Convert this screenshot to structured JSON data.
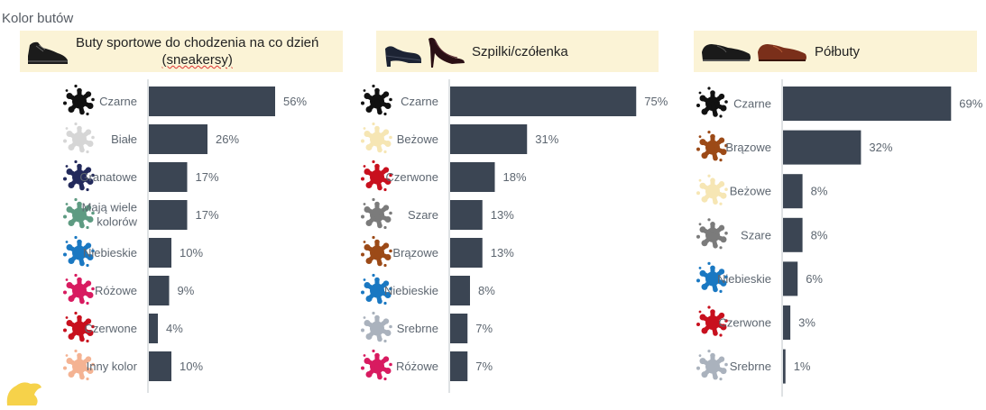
{
  "page_title": "Kolor butów",
  "chart_data": [
    {
      "type": "bar",
      "orientation": "horizontal",
      "title": "Buty sportowe do chodzenia na co dzień (sneakersy)",
      "title_line1": "Buty sportowe do chodzenia na co dzień",
      "title_line2": "(sneakersy)",
      "categories": [
        "Czarne",
        "Białe",
        "Granatowe",
        "Mają wiele kolorów",
        "Niebieskie",
        "Różowe",
        "Czerwone",
        "Inny kolor"
      ],
      "category_lines": [
        [
          "Czarne"
        ],
        [
          "Białe"
        ],
        [
          "Granatowe"
        ],
        [
          "Mają wiele",
          "kolorów"
        ],
        [
          "Niebieskie"
        ],
        [
          "Różowe"
        ],
        [
          "Czerwone"
        ],
        [
          "Inny kolor"
        ]
      ],
      "values": [
        56,
        26,
        17,
        17,
        10,
        9,
        4,
        10
      ],
      "value_labels": [
        "56%",
        "26%",
        "17%",
        "17%",
        "10%",
        "9%",
        "4%",
        "10%"
      ],
      "splash_colors": [
        "#111111",
        "#d6d6d6",
        "#232a5c",
        "#5e9b82",
        "#1a78c2",
        "#d81b60",
        "#c8101e",
        "#f4b393"
      ],
      "unit": "%",
      "xlim": [
        0,
        100
      ],
      "grid": false,
      "legend": "none"
    },
    {
      "type": "bar",
      "orientation": "horizontal",
      "title": "Szpilki/czółenka",
      "categories": [
        "Czarne",
        "Beżowe",
        "Czerwone",
        "Szare",
        "Brązowe",
        "Niebieskie",
        "Srebrne",
        "Różowe"
      ],
      "category_lines": [
        [
          "Czarne"
        ],
        [
          "Beżowe"
        ],
        [
          "Czerwone"
        ],
        [
          "Szare"
        ],
        [
          "Brązowe"
        ],
        [
          "Niebieskie"
        ],
        [
          "Srebrne"
        ],
        [
          "Różowe"
        ]
      ],
      "values": [
        75,
        31,
        18,
        13,
        13,
        8,
        7,
        7
      ],
      "value_labels": [
        "75%",
        "31%",
        "18%",
        "13%",
        "13%",
        "8%",
        "7%",
        "7%"
      ],
      "splash_colors": [
        "#111111",
        "#f6e6b4",
        "#c8101e",
        "#7b7b7b",
        "#9c4a17",
        "#1a78c2",
        "#aab2bd",
        "#d81b60"
      ],
      "unit": "%",
      "xlim": [
        0,
        100
      ],
      "grid": false,
      "legend": "none"
    },
    {
      "type": "bar",
      "orientation": "horizontal",
      "title": "Półbuty",
      "categories": [
        "Czarne",
        "Brązowe",
        "Beżowe",
        "Szare",
        "Niebieskie",
        "Czerwone",
        "Srebrne"
      ],
      "category_lines": [
        [
          "Czarne"
        ],
        [
          "Brązowe"
        ],
        [
          "Beżowe"
        ],
        [
          "Szare"
        ],
        [
          "Niebieskie"
        ],
        [
          "Czerwone"
        ],
        [
          "Srebrne"
        ]
      ],
      "values": [
        69,
        32,
        8,
        8,
        6,
        3,
        1
      ],
      "value_labels": [
        "69%",
        "32%",
        "8%",
        "8%",
        "6%",
        "3%",
        "1%"
      ],
      "splash_colors": [
        "#111111",
        "#9c4a17",
        "#f6e6b4",
        "#7b7b7b",
        "#1a78c2",
        "#c8101e",
        "#aab2bd"
      ],
      "unit": "%",
      "xlim": [
        0,
        100
      ],
      "grid": false,
      "legend": "none"
    }
  ],
  "icons": {
    "color_marker": "paint-splash-icon",
    "panel_1": "sneaker-icon",
    "panel_2": [
      "pump-shoe-icon",
      "stiletto-icon"
    ],
    "panel_3": [
      "oxford-black-icon",
      "oxford-brown-icon"
    ],
    "decoration": "yellow-splash-icon"
  }
}
